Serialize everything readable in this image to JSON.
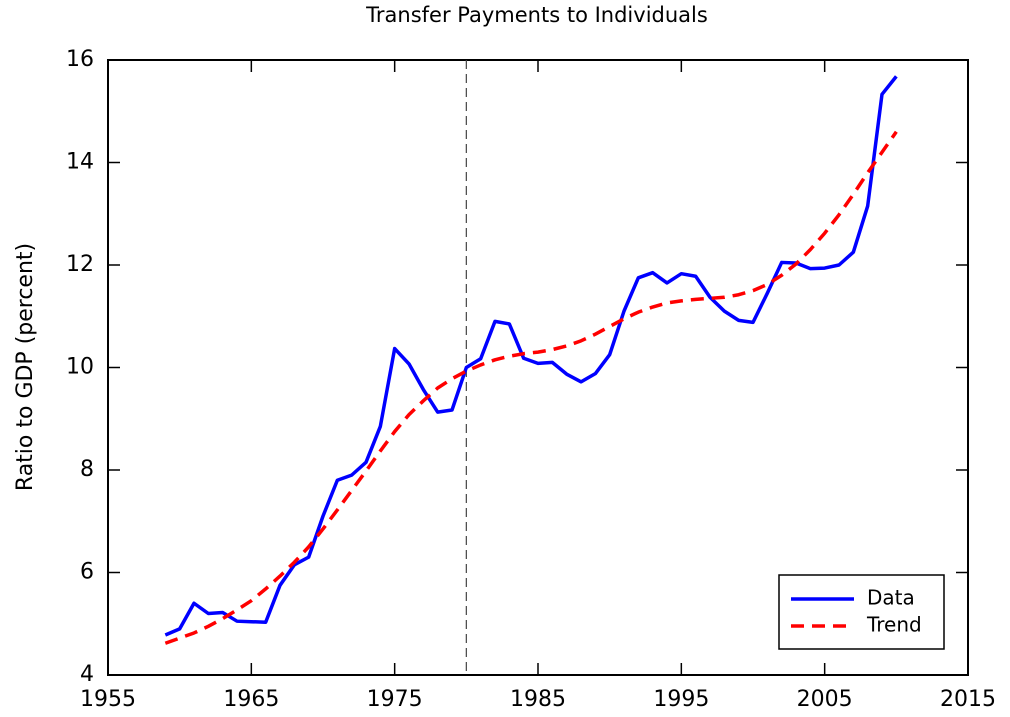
{
  "chart_data": {
    "type": "line",
    "title": "Transfer Payments to Individuals",
    "y_label": "Ratio to GDP (percent)",
    "x": [
      1959,
      1960,
      1961,
      1962,
      1963,
      1964,
      1965,
      1966,
      1967,
      1968,
      1969,
      1970,
      1971,
      1972,
      1973,
      1974,
      1975,
      1976,
      1977,
      1978,
      1979,
      1980,
      1981,
      1982,
      1983,
      1984,
      1985,
      1986,
      1987,
      1988,
      1989,
      1990,
      1991,
      1992,
      1993,
      1994,
      1995,
      1996,
      1997,
      1998,
      1999,
      2000,
      2001,
      2002,
      2003,
      2004,
      2005,
      2006,
      2007,
      2008,
      2009,
      2010
    ],
    "series": [
      {
        "name": "Data",
        "color": "#0000ff",
        "dash": "solid",
        "values": [
          4.78,
          4.9,
          5.4,
          5.2,
          5.22,
          5.05,
          5.04,
          5.03,
          5.75,
          6.15,
          6.3,
          7.1,
          7.8,
          7.9,
          8.15,
          8.85,
          10.37,
          10.07,
          9.57,
          9.13,
          9.17,
          10.0,
          10.17,
          10.9,
          10.85,
          10.18,
          10.08,
          10.1,
          9.87,
          9.72,
          9.88,
          10.25,
          11.1,
          11.75,
          11.85,
          11.65,
          11.83,
          11.78,
          11.37,
          11.1,
          10.92,
          10.88,
          11.45,
          12.05,
          12.04,
          11.93,
          11.94,
          12.0,
          12.25,
          13.15,
          15.33,
          15.68
        ]
      },
      {
        "name": "Trend",
        "color": "#ff0000",
        "dash": "dashed",
        "values": [
          4.62,
          4.72,
          4.82,
          4.95,
          5.1,
          5.27,
          5.45,
          5.68,
          5.93,
          6.2,
          6.5,
          6.85,
          7.22,
          7.6,
          7.98,
          8.37,
          8.75,
          9.08,
          9.35,
          9.6,
          9.78,
          9.93,
          10.05,
          10.15,
          10.22,
          10.27,
          10.3,
          10.35,
          10.42,
          10.52,
          10.65,
          10.8,
          10.95,
          11.08,
          11.18,
          11.26,
          11.3,
          11.33,
          11.35,
          11.37,
          11.42,
          11.5,
          11.62,
          11.8,
          12.02,
          12.3,
          12.62,
          12.98,
          13.38,
          13.8,
          14.2,
          14.6
        ]
      }
    ],
    "vline": 1980,
    "xlim": [
      1955,
      2015
    ],
    "xticks": [
      1955,
      1965,
      1975,
      1985,
      1995,
      2005,
      2015
    ],
    "ylim": [
      4,
      16
    ],
    "yticks": [
      4,
      6,
      8,
      10,
      12,
      14,
      16
    ],
    "legend": "lower right",
    "grid": false
  }
}
